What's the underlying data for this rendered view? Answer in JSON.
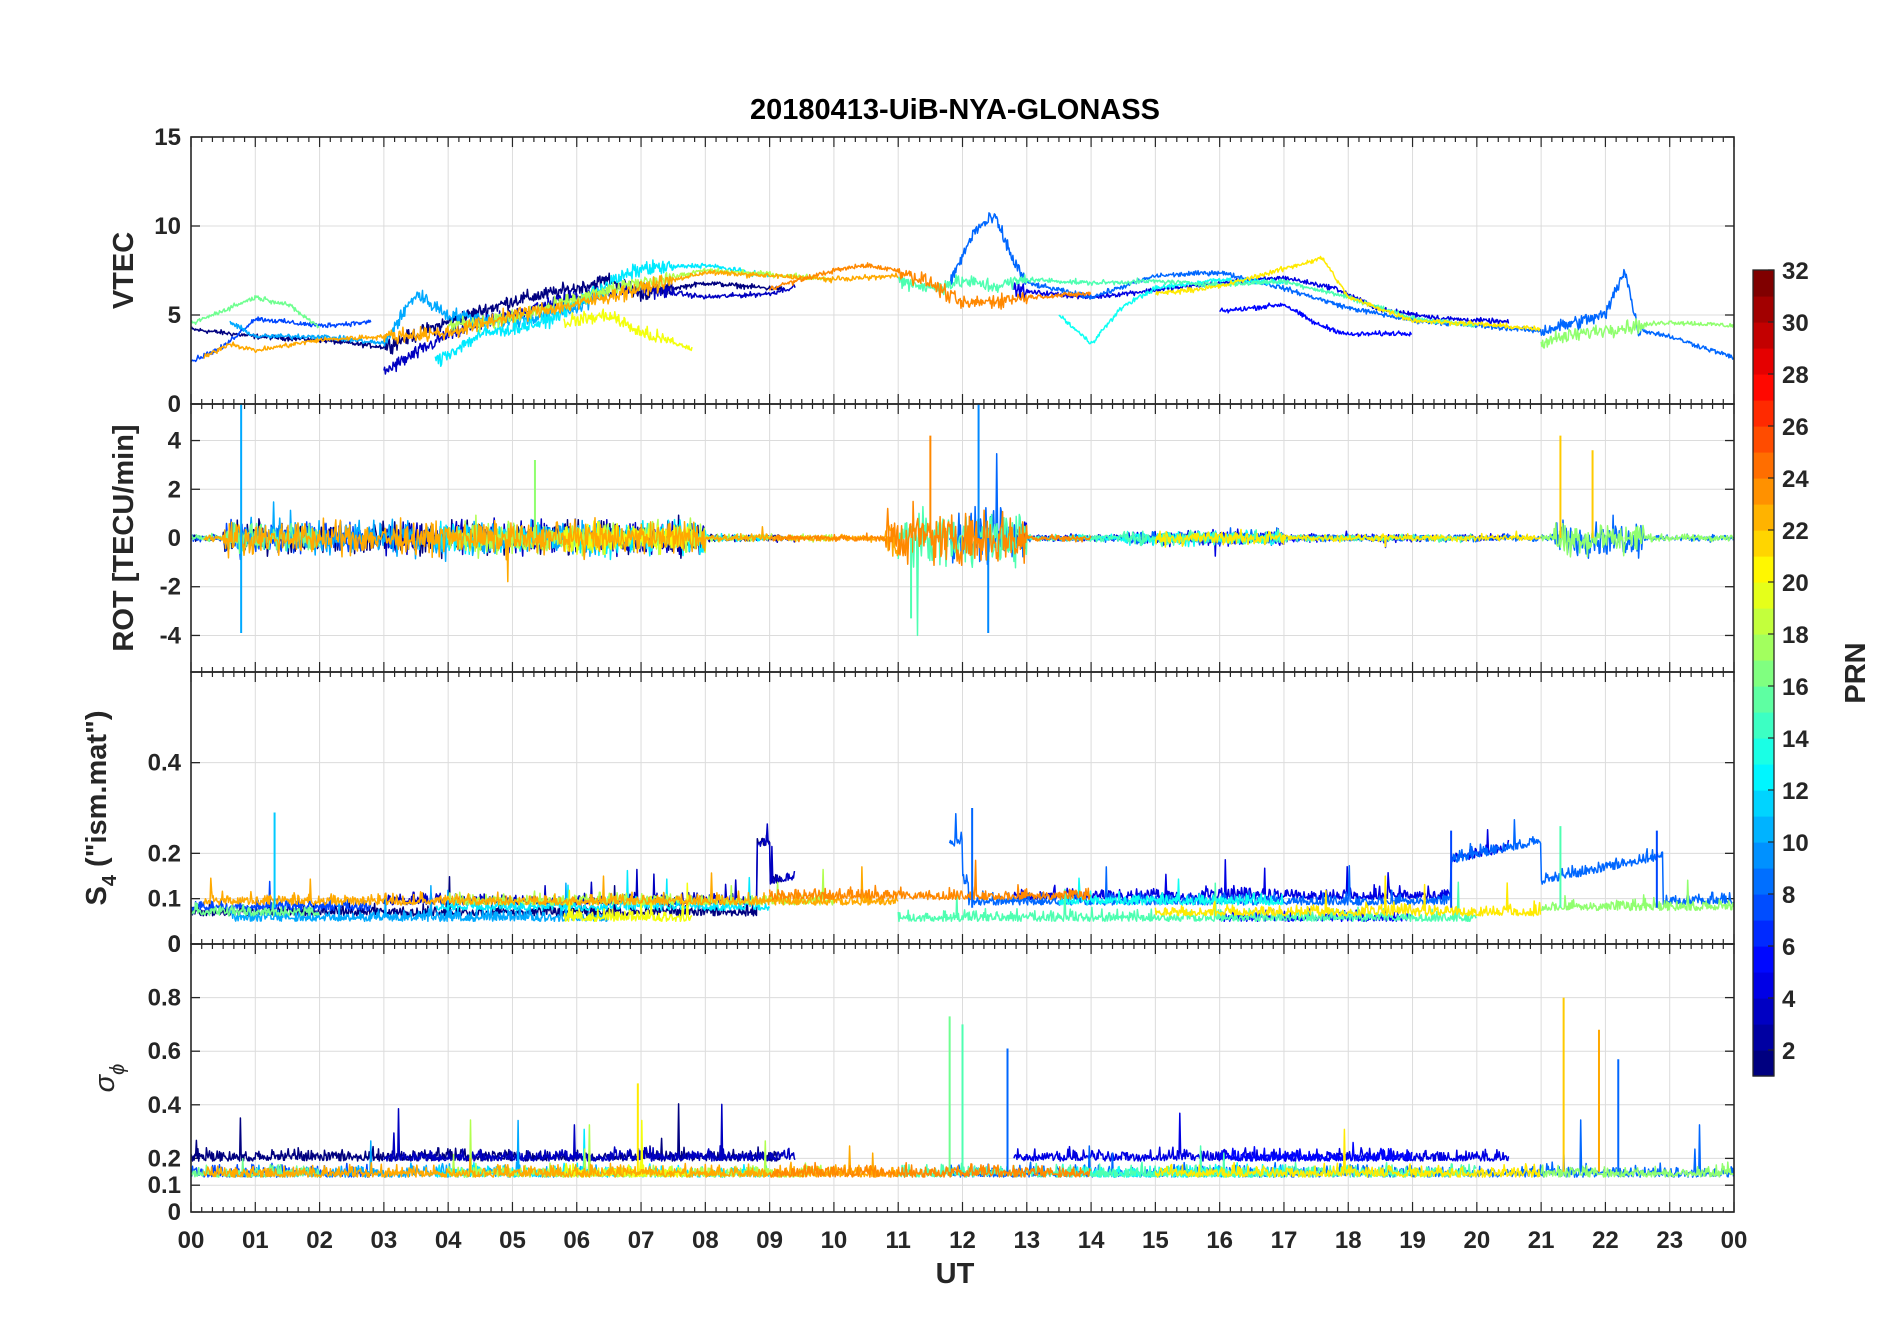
{
  "chart_data": {
    "type": "line",
    "title": "20180413-UiB-NYA-GLONASS",
    "xlabel": "UT",
    "x_tick_labels": [
      "00",
      "01",
      "02",
      "03",
      "04",
      "05",
      "06",
      "07",
      "08",
      "09",
      "10",
      "11",
      "12",
      "13",
      "14",
      "15",
      "16",
      "17",
      "18",
      "19",
      "20",
      "21",
      "22",
      "23",
      "00"
    ],
    "xlim_hours": [
      0,
      24
    ],
    "colorbar": {
      "label": "PRN",
      "range": [
        1,
        32
      ],
      "ticks": [
        "2",
        "4",
        "6",
        "8",
        "10",
        "12",
        "14",
        "16",
        "18",
        "20",
        "22",
        "24",
        "26",
        "28",
        "30",
        "32"
      ],
      "colormap": "jet"
    },
    "panels": [
      {
        "id": "vtec",
        "ylabel": "VTEC",
        "ylim": [
          0,
          15
        ],
        "yticks": [
          "0",
          "5",
          "10",
          "15"
        ],
        "yticks_values": [
          0,
          5,
          10,
          15
        ],
        "description": "Vertical TEC per satellite, roughly 2-8 TECU, peak ~10.5 near 12.5 UT"
      },
      {
        "id": "rot",
        "ylabel": "ROT [TECU/min]",
        "ylim": [
          -5.5,
          5.5
        ],
        "yticks": [
          "-4",
          "-2",
          "0",
          "2",
          "4"
        ],
        "yticks_values": [
          -4,
          -2,
          0,
          2,
          4
        ],
        "description": "Rate of TEC; spikes to ~6 near 00.8 and 12.3 UT, ~4 at 21.3 UT"
      },
      {
        "id": "s4",
        "ylabel_main": "S",
        "ylabel_sub": "4",
        "ylabel_rest": " (\"ism.mat\")",
        "ylim": [
          0,
          0.6
        ],
        "yticks": [
          "0",
          "0",
          "0.1",
          "0.2",
          "0.4"
        ],
        "yticks_values": [
          0,
          0,
          0.1,
          0.2,
          0.4
        ],
        "description": "Amplitude scintillation index, mostly 0.03-0.15, peaks ~0.3"
      },
      {
        "id": "sigphi",
        "ylabel_main": "σ",
        "ylabel_sub": "ϕ",
        "ylim": [
          0,
          1
        ],
        "yticks": [
          "0",
          "0.1",
          "0.2",
          "0.4",
          "0.6",
          "0.8"
        ],
        "yticks_values": [
          0,
          0.1,
          0.2,
          0.4,
          0.6,
          0.8
        ],
        "description": "Phase scintillation index, background 0.1-0.3, spikes to 0.8 at 21.4 UT"
      }
    ],
    "series": [
      {
        "prn": 1,
        "vtec": [
          [
            0.0,
            4.2
          ],
          [
            1.0,
            3.8
          ],
          [
            2.0,
            3.6
          ],
          [
            3.0,
            3.2
          ],
          [
            4.0,
            4.6
          ],
          [
            5.0,
            5.8
          ],
          [
            6.0,
            6.5
          ],
          [
            6.5,
            7.0
          ],
          [
            7.0,
            6.2
          ],
          [
            8.0,
            6.8
          ],
          [
            9.0,
            6.5
          ]
        ],
        "pass": [
          0.0,
          9.2
        ]
      },
      {
        "prn": 3,
        "vtec": [
          [
            3.0,
            1.8
          ],
          [
            4.0,
            3.9
          ],
          [
            5.0,
            5.0
          ],
          [
            6.0,
            6.1
          ],
          [
            7.0,
            6.5
          ],
          [
            8.0,
            6.0
          ],
          [
            9.0,
            6.2
          ],
          [
            9.4,
            6.6
          ]
        ],
        "pass": [
          3.0,
          9.4
        ]
      },
      {
        "prn": 4,
        "vtec": [
          [
            12.8,
            6.5
          ],
          [
            13.0,
            6.3
          ],
          [
            14.0,
            6.0
          ],
          [
            15.0,
            6.4
          ],
          [
            16.0,
            6.8
          ],
          [
            17.0,
            7.1
          ],
          [
            17.8,
            6.5
          ],
          [
            18.5,
            5.3
          ],
          [
            19.5,
            4.8
          ],
          [
            20.5,
            4.6
          ]
        ],
        "pass": [
          12.8,
          20.5
        ]
      },
      {
        "prn": 5,
        "vtec": [
          [
            16.0,
            5.2
          ],
          [
            17.0,
            5.6
          ],
          [
            17.5,
            4.5
          ],
          [
            18.0,
            3.9
          ],
          [
            19.0,
            4.0
          ]
        ],
        "pass": [
          16.0,
          19.0
        ]
      },
      {
        "prn": 7,
        "vtec": [
          [
            0.0,
            2.4
          ],
          [
            0.5,
            3.2
          ],
          [
            1.0,
            4.8
          ],
          [
            2.0,
            4.4
          ],
          [
            2.8,
            4.6
          ]
        ],
        "pass": [
          0.0,
          2.8
        ]
      },
      {
        "prn": 8,
        "vtec": [
          [
            11.8,
            6.8
          ],
          [
            12.2,
            9.8
          ],
          [
            12.5,
            10.5
          ],
          [
            12.8,
            8.0
          ],
          [
            13.0,
            6.8
          ],
          [
            14.0,
            6.0
          ],
          [
            15.0,
            7.2
          ],
          [
            16.0,
            7.4
          ],
          [
            17.0,
            6.5
          ],
          [
            18.0,
            5.4
          ],
          [
            19.0,
            4.7
          ],
          [
            20.0,
            4.4
          ],
          [
            21.0,
            4.1
          ],
          [
            22.0,
            5.0
          ],
          [
            22.3,
            7.6
          ],
          [
            22.5,
            4.2
          ],
          [
            23.0,
            3.8
          ],
          [
            24.0,
            2.6
          ]
        ],
        "pass": [
          11.8,
          24.0
        ]
      },
      {
        "prn": 10,
        "vtec": [
          [
            0.6,
            4.6
          ],
          [
            1.0,
            3.8
          ],
          [
            2.0,
            3.8
          ],
          [
            3.0,
            3.4
          ],
          [
            3.5,
            6.2
          ],
          [
            4.0,
            5.0
          ],
          [
            5.0,
            4.6
          ],
          [
            6.0,
            5.4
          ],
          [
            6.5,
            6.4
          ]
        ],
        "pass": [
          0.6,
          6.5
        ]
      },
      {
        "prn": 12,
        "vtec": [
          [
            3.8,
            2.4
          ],
          [
            4.5,
            3.9
          ],
          [
            5.5,
            4.6
          ],
          [
            6.5,
            6.8
          ],
          [
            7.0,
            7.6
          ],
          [
            8.0,
            7.8
          ],
          [
            9.0,
            7.2
          ]
        ],
        "pass": [
          3.8,
          9.0
        ]
      },
      {
        "prn": 13,
        "vtec": [
          [
            13.5,
            5.0
          ],
          [
            14.0,
            3.4
          ],
          [
            14.5,
            5.5
          ],
          [
            15.0,
            6.5
          ],
          [
            16.0,
            7.0
          ],
          [
            17.0,
            6.8
          ]
        ],
        "pass": [
          13.5,
          17.0
        ]
      },
      {
        "prn": 16,
        "vtec": [
          [
            0.0,
            4.5
          ],
          [
            1.0,
            6.0
          ],
          [
            1.5,
            5.6
          ],
          [
            2.0,
            4.3
          ]
        ],
        "pass": [
          0.0,
          2.0
        ]
      },
      {
        "prn": 15,
        "vtec": [
          [
            11.0,
            7.0
          ],
          [
            11.5,
            6.5
          ],
          [
            12.0,
            6.9
          ],
          [
            12.5,
            6.6
          ],
          [
            13.0,
            7.0
          ],
          [
            14.0,
            6.8
          ],
          [
            15.0,
            6.9
          ],
          [
            16.0,
            6.7
          ],
          [
            17.0,
            6.9
          ],
          [
            18.0,
            6.0
          ],
          [
            19.0,
            4.8
          ],
          [
            20.0,
            4.4
          ]
        ],
        "pass": [
          11.0,
          20.0
        ]
      },
      {
        "prn": 17,
        "vtec": [
          [
            21.0,
            3.5
          ],
          [
            22.0,
            4.2
          ],
          [
            23.0,
            4.6
          ],
          [
            24.0,
            4.4
          ]
        ],
        "pass": [
          21.0,
          24.0
        ]
      },
      {
        "prn": 18,
        "vtec": [
          [
            4.0,
            4.4
          ],
          [
            5.0,
            4.8
          ],
          [
            6.0,
            5.9
          ],
          [
            7.0,
            6.8
          ],
          [
            8.0,
            7.5
          ],
          [
            9.0,
            7.3
          ],
          [
            10.0,
            7.0
          ]
        ],
        "pass": [
          4.0,
          10.0
        ]
      },
      {
        "prn": 20,
        "vtec": [
          [
            5.8,
            4.6
          ],
          [
            6.5,
            5.0
          ],
          [
            7.0,
            4.0
          ],
          [
            7.8,
            3.1
          ]
        ],
        "pass": [
          5.8,
          7.8
        ]
      },
      {
        "prn": 21,
        "vtec": [
          [
            15.0,
            6.2
          ],
          [
            16.0,
            6.6
          ],
          [
            17.0,
            7.6
          ],
          [
            17.6,
            8.2
          ],
          [
            18.0,
            6.0
          ],
          [
            19.0,
            4.7
          ],
          [
            20.0,
            4.5
          ],
          [
            21.0,
            4.2
          ]
        ],
        "pass": [
          15.0,
          21.0
        ]
      },
      {
        "prn": 23,
        "vtec": [
          [
            0.2,
            2.6
          ],
          [
            0.6,
            3.4
          ],
          [
            1.0,
            3.0
          ],
          [
            2.0,
            3.6
          ],
          [
            3.0,
            3.8
          ],
          [
            4.0,
            4.0
          ],
          [
            5.0,
            5.0
          ],
          [
            6.0,
            5.6
          ],
          [
            7.0,
            6.5
          ],
          [
            8.0,
            7.4
          ],
          [
            9.0,
            7.2
          ],
          [
            10.0,
            7.0
          ],
          [
            11.0,
            7.2
          ]
        ],
        "pass": [
          0.2,
          11.0
        ]
      },
      {
        "prn": 24,
        "vtec": [
          [
            9.0,
            6.5
          ],
          [
            10.0,
            7.5
          ],
          [
            10.5,
            7.8
          ],
          [
            11.0,
            7.5
          ],
          [
            11.5,
            6.8
          ],
          [
            12.0,
            5.6
          ],
          [
            13.0,
            6.0
          ],
          [
            14.0,
            6.2
          ]
        ],
        "pass": [
          9.0,
          14.0
        ]
      }
    ]
  }
}
